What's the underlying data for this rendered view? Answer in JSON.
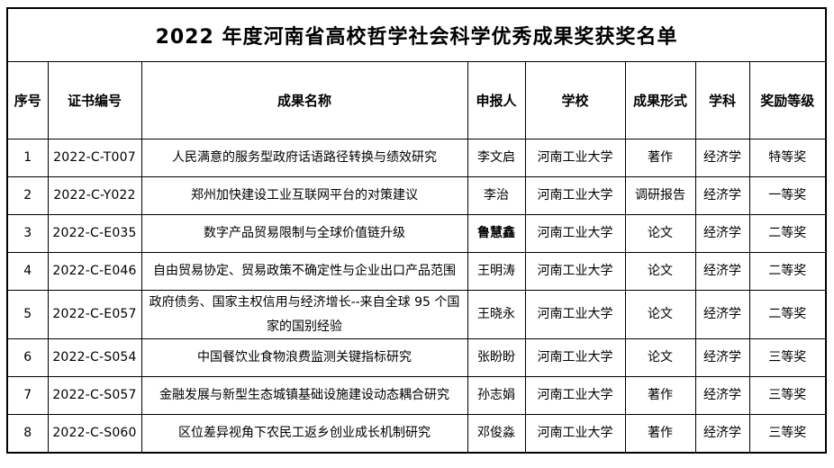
{
  "title": "2022 年度河南省高校哲学社会科学优秀成果奖获奖名单",
  "table": {
    "columns": [
      "序号",
      "证书编号",
      "成果名称",
      "申报人",
      "学校",
      "成果形式",
      "学科",
      "奖励等级"
    ],
    "column_keys": [
      "index",
      "certificate-no",
      "achievement-title",
      "applicant",
      "university",
      "form",
      "discipline",
      "award-level"
    ],
    "rows": [
      {
        "cells": [
          "1",
          "2022-C-T007",
          "人民满意的服务型政府话语路径转换与绩效研究",
          "李文启",
          "河南工业大学",
          "著作",
          "经济学",
          "特等奖"
        ],
        "applicant_bold": false
      },
      {
        "cells": [
          "2",
          "2022-C-Y022",
          "郑州加快建设工业互联网平台的对策建议",
          "李治",
          "河南工业大学",
          "调研报告",
          "经济学",
          "一等奖"
        ],
        "applicant_bold": false
      },
      {
        "cells": [
          "3",
          "2022-C-E035",
          "数字产品贸易限制与全球价值链升级",
          "鲁慧鑫",
          "河南工业大学",
          "论文",
          "经济学",
          "二等奖"
        ],
        "applicant_bold": true
      },
      {
        "cells": [
          "4",
          "2022-C-E046",
          "自由贸易协定、贸易政策不确定性与企业出口产品范围",
          "王明涛",
          "河南工业大学",
          "论文",
          "经济学",
          "二等奖"
        ],
        "applicant_bold": false
      },
      {
        "cells": [
          "5",
          "2022-C-E057",
          "政府债务、国家主权信用与经济增长--来自全球 95 个国家的国别经验",
          "王晓永",
          "河南工业大学",
          "论文",
          "经济学",
          "二等奖"
        ],
        "applicant_bold": false
      },
      {
        "cells": [
          "6",
          "2022-C-S054",
          "中国餐饮业食物浪费监测关键指标研究",
          "张盼盼",
          "河南工业大学",
          "论文",
          "经济学",
          "三等奖"
        ],
        "applicant_bold": false
      },
      {
        "cells": [
          "7",
          "2022-C-S057",
          "金融发展与新型生态城镇基础设施建设动态耦合研究",
          "孙志娟",
          "河南工业大学",
          "著作",
          "经济学",
          "三等奖"
        ],
        "applicant_bold": false
      },
      {
        "cells": [
          "8",
          "2022-C-S060",
          "区位差异视角下农民工返乡创业成长机制研究",
          "邓俊淼",
          "河南工业大学",
          "著作",
          "经济学",
          "三等奖"
        ],
        "applicant_bold": false
      }
    ]
  }
}
